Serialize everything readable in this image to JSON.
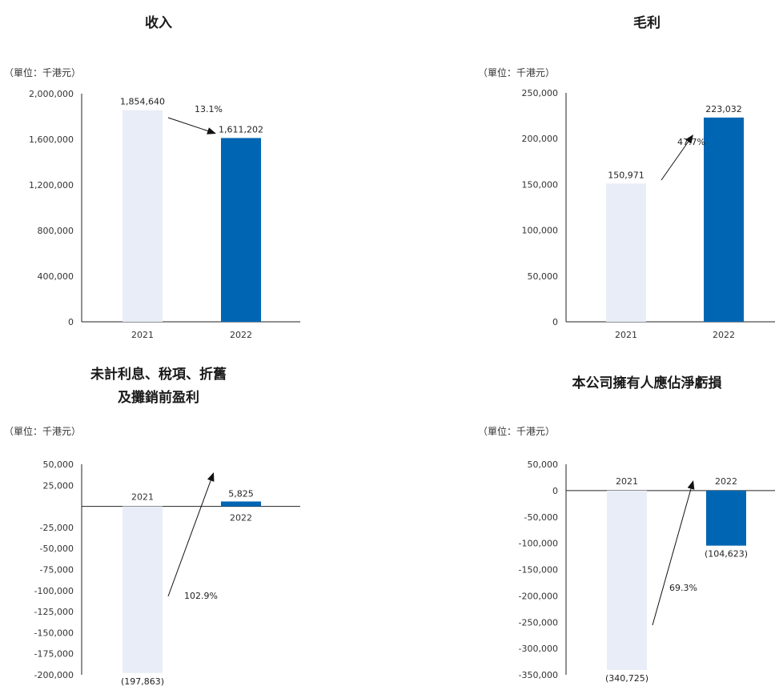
{
  "chart_data": [
    {
      "type": "bar",
      "title": "收入",
      "unit_label": "（單位：千港元）",
      "categories": [
        "2021",
        "2022"
      ],
      "values": [
        1854640,
        1611202
      ],
      "value_labels": [
        "1,854,640",
        "1,611,202"
      ],
      "ylim": [
        0,
        2000000
      ],
      "y_ticks": [
        "2,000,000",
        "1,600,000",
        "1,200,000",
        "800,000",
        "400,000",
        "0"
      ],
      "y_tick_values": [
        2000000,
        1600000,
        1200000,
        800000,
        400000,
        0
      ],
      "change_label": "13.1%",
      "bar_colors": [
        "#e8edf7",
        "#0066b3"
      ]
    },
    {
      "type": "bar",
      "title": "毛利",
      "unit_label": "（單位：千港元）",
      "categories": [
        "2021",
        "2022"
      ],
      "values": [
        150971,
        223032
      ],
      "value_labels": [
        "150,971",
        "223,032"
      ],
      "ylim": [
        0,
        250000
      ],
      "y_ticks": [
        "250,000",
        "200,000",
        "150,000",
        "100,000",
        "50,000",
        "0"
      ],
      "y_tick_values": [
        250000,
        200000,
        150000,
        100000,
        50000,
        0
      ],
      "change_label": "47.7%",
      "bar_colors": [
        "#e8edf7",
        "#0066b3"
      ]
    },
    {
      "type": "bar",
      "title": [
        "未計利息、稅項、折舊",
        "及攤銷前盈利"
      ],
      "unit_label": "（單位：千港元）",
      "categories": [
        "2021",
        "2022"
      ],
      "values": [
        -197863,
        5825
      ],
      "value_labels": [
        "(197,863)",
        "5,825"
      ],
      "ylim": [
        -200000,
        50000
      ],
      "y_ticks": [
        "50,000",
        "25,000",
        "-25,000",
        "-50,000",
        "-75,000",
        "-100,000",
        "-125,000",
        "-150,000",
        "-175,000",
        "-200,000"
      ],
      "y_tick_values": [
        50000,
        25000,
        -25000,
        -50000,
        -75000,
        -100000,
        -125000,
        -150000,
        -175000,
        -200000
      ],
      "change_label": "102.9%",
      "bar_colors": [
        "#e8edf7",
        "#0066b3"
      ]
    },
    {
      "type": "bar",
      "title": "本公司擁有人應佔淨虧損",
      "unit_label": "（單位：千港元）",
      "categories": [
        "2021",
        "2022"
      ],
      "values": [
        -340725,
        -104623
      ],
      "value_labels": [
        "(340,725)",
        "(104,623)"
      ],
      "ylim": [
        -350000,
        50000
      ],
      "y_ticks": [
        "50,000",
        "0",
        "-50,000",
        "-100,000",
        "-150,000",
        "-200,000",
        "-250,000",
        "-300,000",
        "-350,000"
      ],
      "y_tick_values": [
        50000,
        0,
        -50000,
        -100000,
        -150000,
        -200000,
        -250000,
        -300000,
        -350000
      ],
      "change_label": "69.3%",
      "bar_colors": [
        "#e8edf7",
        "#0066b3"
      ]
    }
  ]
}
